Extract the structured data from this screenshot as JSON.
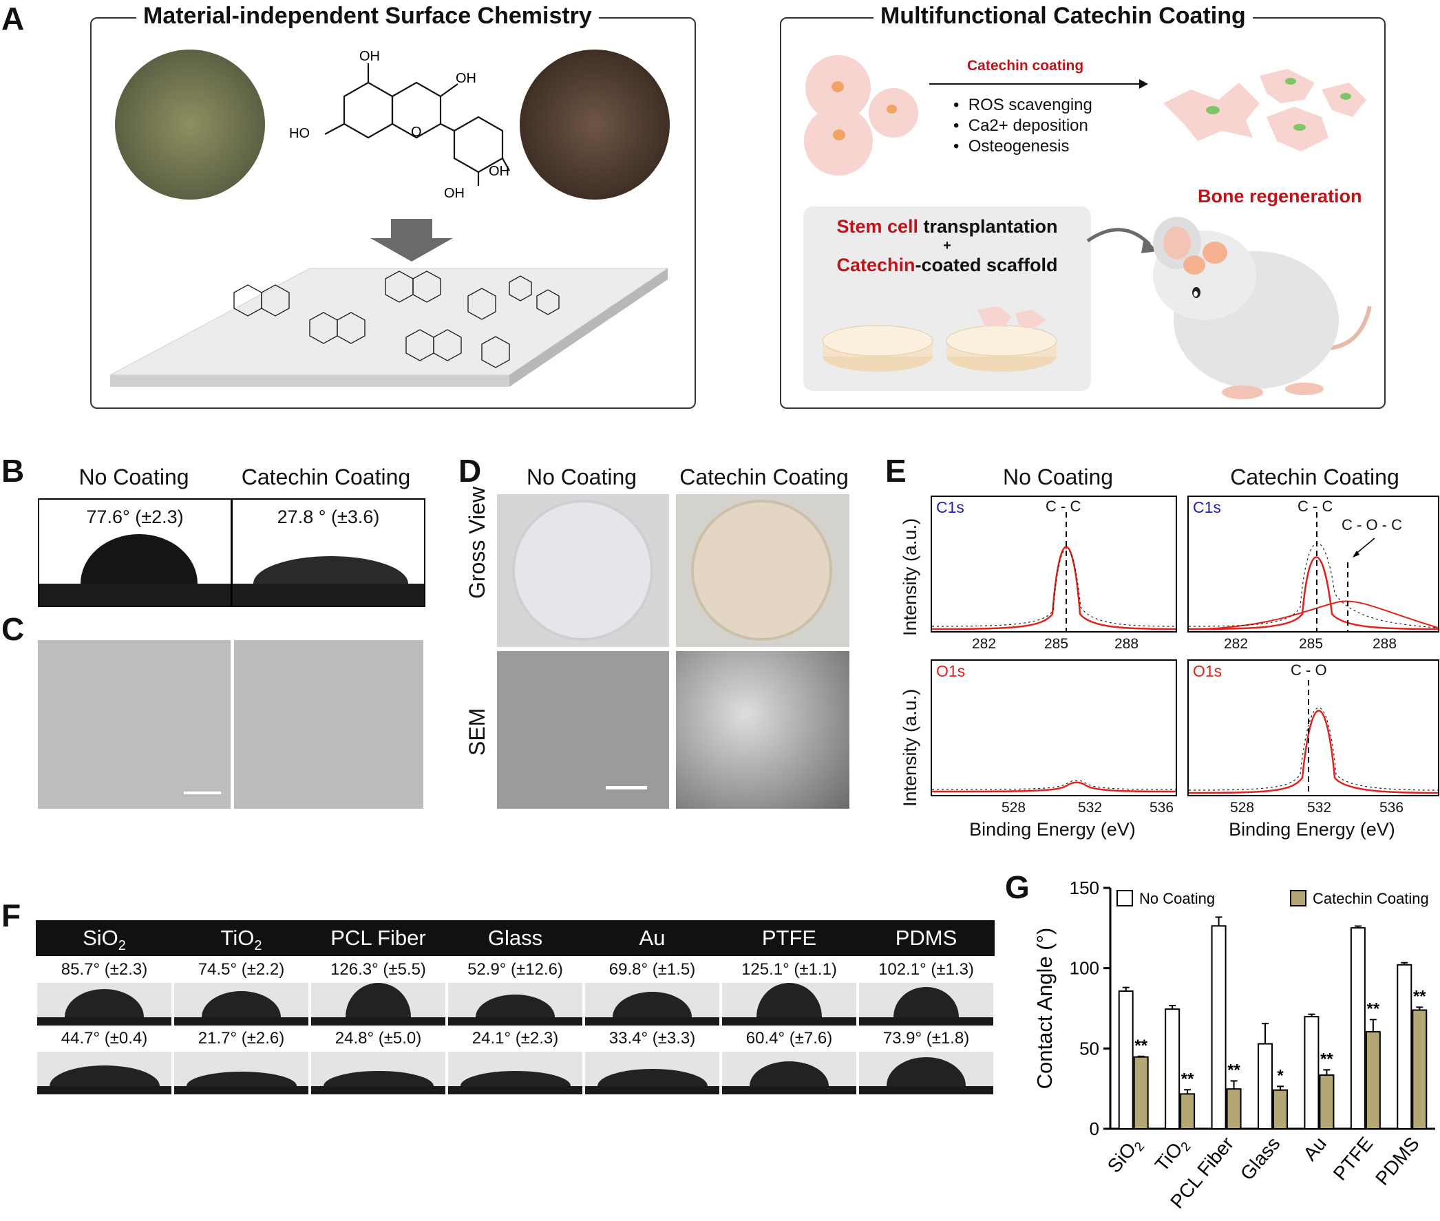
{
  "panels": {
    "A": "A",
    "B": "B",
    "C": "C",
    "D": "D",
    "E": "E",
    "F": "F",
    "G": "G"
  },
  "panelA": {
    "left_title": "Material-independent Surface Chemistry",
    "right_title": "Multifunctional Catechin Coating",
    "mol_labels": [
      "OH",
      "OH",
      "HO",
      "OH",
      "OH",
      "O"
    ],
    "arrow_label": "Catechin coating",
    "bullets": [
      "ROS scavenging",
      "Ca2+ deposition",
      "Osteogenesis"
    ],
    "bone_regen": "Bone regeneration",
    "inset_line1_red": "Stem cell",
    "inset_line1_rest": " transplantation",
    "inset_plus": "+",
    "inset_line3_red": "Catechin",
    "inset_line3_rest": "-coated scaffold"
  },
  "panelB": {
    "col1": "No Coating",
    "col2": "Catechin Coating",
    "angle1": "77.6° (±2.3)",
    "angle2": "27.8 ° (±3.6)"
  },
  "panelD": {
    "col1": "No Coating",
    "col2": "Catechin Coating",
    "row1": "Gross View",
    "row2": "SEM"
  },
  "panelE": {
    "col1": "No Coating",
    "col2": "Catechin Coating",
    "ylabel": "Intensity (a.u.)",
    "xlabel": "Binding Energy (eV)",
    "c1s": "C1s",
    "o1s": "O1s",
    "cc": "C - C",
    "coc": "C - O - C",
    "co": "C - O",
    "c_ticks": [
      "282",
      "285",
      "288"
    ],
    "o_ticks": [
      "528",
      "532",
      "536"
    ]
  },
  "panelF": {
    "materials": [
      "SiO2",
      "TiO2",
      "PCL Fiber",
      "Glass",
      "Au",
      "PTFE",
      "PDMS"
    ],
    "no_coating": [
      "85.7° (±2.3)",
      "74.5° (±2.2)",
      "126.3° (±5.5)",
      "52.9° (±12.6)",
      "69.8° (±1.5)",
      "125.1° (±1.1)",
      "102.1° (±1.3)"
    ],
    "catechin": [
      "44.7° (±0.4)",
      "21.7° (±2.6)",
      "24.8° (±5.0)",
      "24.1° (±2.3)",
      "33.4° (±3.3)",
      "60.4° (±7.6)",
      "73.9° (±1.8)"
    ]
  },
  "chart_data": {
    "type": "bar",
    "categories": [
      "SiO2",
      "TiO2",
      "PCL Fiber",
      "Glass",
      "Au",
      "PTFE",
      "PDMS"
    ],
    "series": [
      {
        "name": "No Coating",
        "values": [
          85.7,
          74.5,
          126.3,
          52.9,
          69.8,
          125.1,
          102.1
        ],
        "errors": [
          2.3,
          2.2,
          5.5,
          12.6,
          1.5,
          1.1,
          1.3
        ],
        "color": "#ffffff"
      },
      {
        "name": "Catechin Coating",
        "values": [
          44.7,
          21.7,
          24.8,
          24.1,
          33.4,
          60.4,
          73.9
        ],
        "errors": [
          0.4,
          2.6,
          5.0,
          2.3,
          3.3,
          7.6,
          1.8
        ],
        "color": "#b4a675"
      }
    ],
    "significance": [
      "**",
      "**",
      "**",
      "*",
      "**",
      "**",
      "**"
    ],
    "ylabel": "Contact  Angle (°)",
    "ylim": [
      0,
      150
    ],
    "yticks": [
      "0",
      "50",
      "100",
      "150"
    ],
    "legend": "top"
  }
}
